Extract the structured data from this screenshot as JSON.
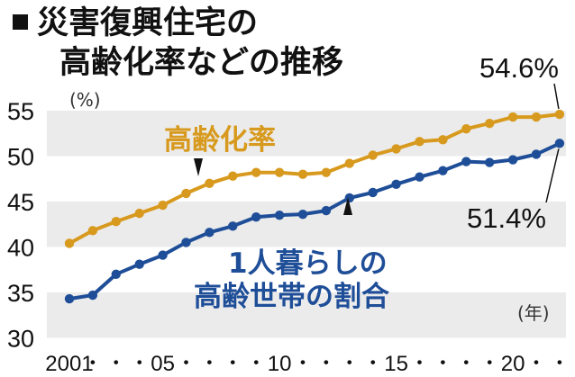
{
  "title": {
    "line1": "災害復興住宅の",
    "line2": "高齢化率などの推移"
  },
  "chart_data": {
    "type": "line",
    "unit_label": "(%)",
    "x_unit_label": "(年)",
    "x": [
      2001,
      2002,
      2003,
      2004,
      2005,
      2006,
      2007,
      2008,
      2009,
      2010,
      2011,
      2012,
      2013,
      2014,
      2015,
      2016,
      2017,
      2018,
      2019,
      2020,
      2021,
      2022
    ],
    "xtick_labels": [
      {
        "x": 2001,
        "label": "2001"
      },
      {
        "x": 2002,
        "label": "・"
      },
      {
        "x": 2003,
        "label": "・"
      },
      {
        "x": 2004,
        "label": "・"
      },
      {
        "x": 2005,
        "label": "05"
      },
      {
        "x": 2006,
        "label": "・"
      },
      {
        "x": 2007,
        "label": "・"
      },
      {
        "x": 2008,
        "label": "・"
      },
      {
        "x": 2009,
        "label": "・"
      },
      {
        "x": 2010,
        "label": "10"
      },
      {
        "x": 2011,
        "label": "・"
      },
      {
        "x": 2012,
        "label": "・"
      },
      {
        "x": 2013,
        "label": "・"
      },
      {
        "x": 2014,
        "label": "・"
      },
      {
        "x": 2015,
        "label": "15"
      },
      {
        "x": 2016,
        "label": "・"
      },
      {
        "x": 2017,
        "label": "・"
      },
      {
        "x": 2018,
        "label": "・"
      },
      {
        "x": 2019,
        "label": "・"
      },
      {
        "x": 2020,
        "label": "20"
      },
      {
        "x": 2021,
        "label": "・"
      },
      {
        "x": 2022,
        "label": "・"
      }
    ],
    "yticks": [
      30,
      35,
      40,
      45,
      50,
      55
    ],
    "ylim": [
      30,
      57
    ],
    "series": [
      {
        "name": "高齢化率",
        "color": "#d89a1e",
        "values": [
          40.4,
          41.8,
          42.8,
          43.7,
          44.6,
          45.9,
          47.0,
          47.8,
          48.2,
          48.2,
          48.0,
          48.2,
          49.2,
          50.1,
          50.8,
          51.6,
          51.8,
          53.0,
          53.6,
          54.3,
          54.3,
          54.6
        ],
        "end_label": "54.6%"
      },
      {
        "name": "1人暮らしの高齢世帯の割合",
        "name_lines": [
          "1人暮らしの",
          "高齢世帯の割合"
        ],
        "color": "#1f4e98",
        "values": [
          34.3,
          34.7,
          37.0,
          38.1,
          39.1,
          40.5,
          41.6,
          42.3,
          43.3,
          43.5,
          43.6,
          44.0,
          45.4,
          46.0,
          46.9,
          47.7,
          48.4,
          49.4,
          49.3,
          49.6,
          50.2,
          51.4
        ],
        "end_label": "51.4%"
      }
    ],
    "grid": "alternating bands"
  }
}
